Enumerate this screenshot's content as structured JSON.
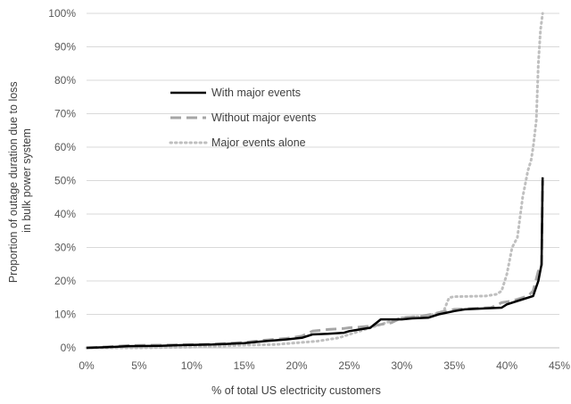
{
  "chart_data": {
    "type": "line",
    "title": "",
    "xlabel": "% of total US electricity customers",
    "ylabel_lines": [
      "Proportion of outage duration due to loss",
      "in bulk power system"
    ],
    "xlim": [
      0,
      45
    ],
    "ylim": [
      0,
      100
    ],
    "x_ticks": [
      0,
      5,
      10,
      15,
      20,
      25,
      30,
      35,
      40,
      45
    ],
    "x_tick_labels": [
      "0%",
      "5%",
      "10%",
      "15%",
      "20%",
      "25%",
      "30%",
      "35%",
      "40%",
      "45%"
    ],
    "y_ticks": [
      0,
      10,
      20,
      30,
      40,
      50,
      60,
      70,
      80,
      90,
      100
    ],
    "y_tick_labels": [
      "0%",
      "10%",
      "20%",
      "30%",
      "40%",
      "50%",
      "60%",
      "70%",
      "80%",
      "90%",
      "100%"
    ],
    "grid": "horizontal",
    "legend_position": "upper-left-center",
    "series": [
      {
        "name": "With major events",
        "color": "#000000",
        "style": "solid",
        "points": [
          [
            0,
            0
          ],
          [
            2,
            0.2
          ],
          [
            4,
            0.5
          ],
          [
            7,
            0.6
          ],
          [
            9,
            0.8
          ],
          [
            12,
            1
          ],
          [
            15,
            1.4
          ],
          [
            17,
            2
          ],
          [
            19,
            2.5
          ],
          [
            20.5,
            3
          ],
          [
            21.5,
            4
          ],
          [
            23,
            4.2
          ],
          [
            24.5,
            4.5
          ],
          [
            25,
            5
          ],
          [
            26,
            5.5
          ],
          [
            27,
            6
          ],
          [
            28,
            8.5
          ],
          [
            29,
            8.5
          ],
          [
            30,
            8.5
          ],
          [
            31,
            8.8
          ],
          [
            32.5,
            9
          ],
          [
            33.5,
            10
          ],
          [
            35,
            11
          ],
          [
            36,
            11.5
          ],
          [
            38,
            11.8
          ],
          [
            39.5,
            12
          ],
          [
            40,
            13
          ],
          [
            41,
            14
          ],
          [
            42.5,
            15.5
          ],
          [
            43,
            20
          ],
          [
            43.3,
            25
          ],
          [
            43.4,
            51
          ]
        ]
      },
      {
        "name": "Without major events",
        "color": "#a6a6a6",
        "style": "dashed",
        "points": [
          [
            0,
            0
          ],
          [
            2,
            0.3
          ],
          [
            4,
            0.7
          ],
          [
            7,
            0.8
          ],
          [
            9,
            0.9
          ],
          [
            12,
            1.1
          ],
          [
            15,
            1.6
          ],
          [
            17,
            2.3
          ],
          [
            19,
            2.8
          ],
          [
            20.5,
            3.5
          ],
          [
            21.5,
            5
          ],
          [
            23,
            5.5
          ],
          [
            24.5,
            5.8
          ],
          [
            25,
            6
          ],
          [
            26,
            6.2
          ],
          [
            27,
            6.5
          ],
          [
            28,
            7
          ],
          [
            29,
            7.5
          ],
          [
            30,
            9
          ],
          [
            32,
            9.5
          ],
          [
            33.5,
            10.5
          ],
          [
            35,
            11.5
          ],
          [
            37,
            11.8
          ],
          [
            38.5,
            12
          ],
          [
            39.5,
            13.5
          ],
          [
            40.5,
            14
          ],
          [
            42,
            15.5
          ],
          [
            42.5,
            17
          ],
          [
            43,
            23
          ],
          [
            43.3,
            24
          ],
          [
            43.4,
            50
          ]
        ]
      },
      {
        "name": "Major events alone",
        "color": "#bfbfbf",
        "style": "dotted",
        "points": [
          [
            0,
            0
          ],
          [
            5,
            0
          ],
          [
            10,
            0.2
          ],
          [
            15,
            0.8
          ],
          [
            18,
            1
          ],
          [
            20,
            1.5
          ],
          [
            22,
            2
          ],
          [
            24,
            3
          ],
          [
            25,
            4
          ],
          [
            26,
            5
          ],
          [
            27,
            6
          ],
          [
            28,
            7
          ],
          [
            29,
            8
          ],
          [
            30,
            9
          ],
          [
            32,
            9.5
          ],
          [
            33,
            10
          ],
          [
            34,
            11
          ],
          [
            34.5,
            15
          ],
          [
            35,
            15.3
          ],
          [
            38,
            15.5
          ],
          [
            39,
            16
          ],
          [
            39.5,
            17
          ],
          [
            40,
            22
          ],
          [
            40.5,
            30
          ],
          [
            41,
            33
          ],
          [
            41.5,
            45
          ],
          [
            42,
            53
          ],
          [
            42.3,
            56
          ],
          [
            42.5,
            60
          ],
          [
            42.8,
            68
          ],
          [
            43,
            85
          ],
          [
            43.2,
            95
          ],
          [
            43.4,
            100
          ]
        ]
      }
    ]
  }
}
